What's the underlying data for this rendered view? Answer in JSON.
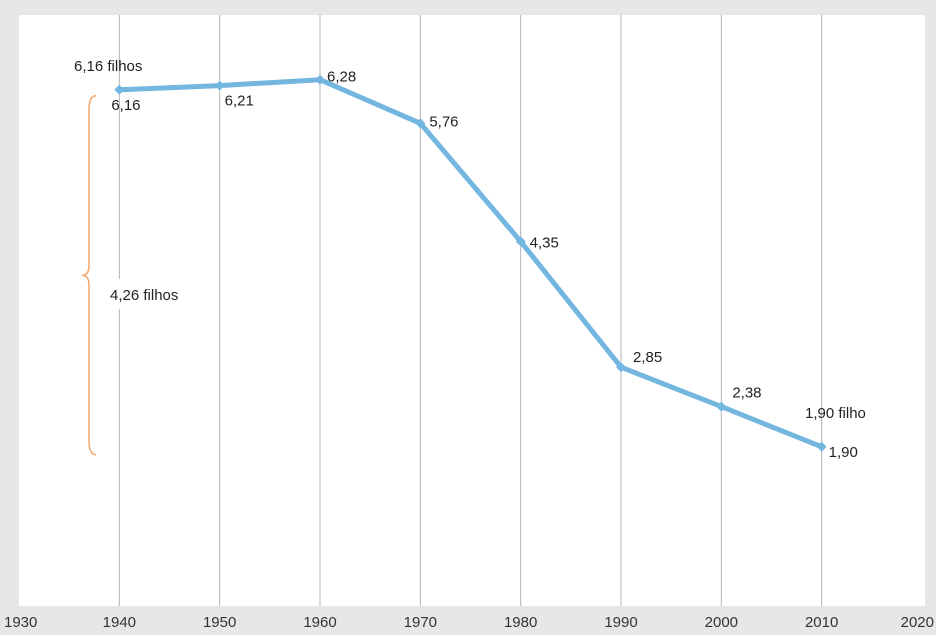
{
  "chart_data": {
    "type": "line",
    "title": "",
    "xlabel": "",
    "ylabel": "",
    "x": [
      1940,
      1950,
      1960,
      1970,
      1980,
      1990,
      2000,
      2010
    ],
    "series": [
      {
        "values": [
          6.16,
          6.21,
          6.28,
          5.76,
          4.35,
          2.85,
          2.38,
          1.9
        ],
        "color": "#73b6e0"
      }
    ],
    "data_labels": [
      "6,16",
      "6,21",
      "6,28",
      "5,76",
      "4,35",
      "2,85",
      "2,38",
      "1,90"
    ],
    "x_ticks": [
      "1930",
      "1940",
      "1950",
      "1960",
      "1970",
      "1980",
      "1990",
      "2000",
      "2010",
      "2020"
    ],
    "xlim": [
      1930,
      2020
    ],
    "ylim": [
      0,
      6.8
    ],
    "grid": "vertical",
    "legend": "none",
    "annotations": [
      {
        "text": "6,16 filhos"
      },
      {
        "text": "4,26 filhos"
      },
      {
        "text": "1,90 filho"
      }
    ],
    "colors": {
      "line": "#73b6e0",
      "brace": "#f2a76a",
      "grid": "#b3b3b3",
      "plot_background": "#ffffff",
      "page_background": "#e7e7e7"
    }
  }
}
